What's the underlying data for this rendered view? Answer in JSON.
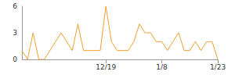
{
  "chart_data": {
    "type": "line",
    "color": "#f0a030",
    "categories": [
      null,
      null,
      null,
      null,
      null,
      null,
      null,
      null,
      null,
      null,
      null,
      null,
      null,
      null,
      null,
      "12/19",
      null,
      null,
      null,
      null,
      null,
      null,
      null,
      null,
      null,
      "1/8",
      null,
      null,
      null,
      null,
      null,
      null,
      null,
      null,
      null,
      "1/23"
    ],
    "values": [
      1,
      0,
      3,
      0,
      0,
      1,
      2,
      3,
      2,
      1,
      4,
      1,
      1,
      1,
      1,
      6,
      2,
      1,
      1,
      1,
      2,
      4,
      3,
      3,
      2,
      2,
      1,
      2,
      3,
      1,
      1,
      2,
      1,
      2,
      2,
      0
    ],
    "ylim": [
      0,
      6
    ],
    "yticks": [
      0,
      3,
      6
    ],
    "grid": false
  }
}
